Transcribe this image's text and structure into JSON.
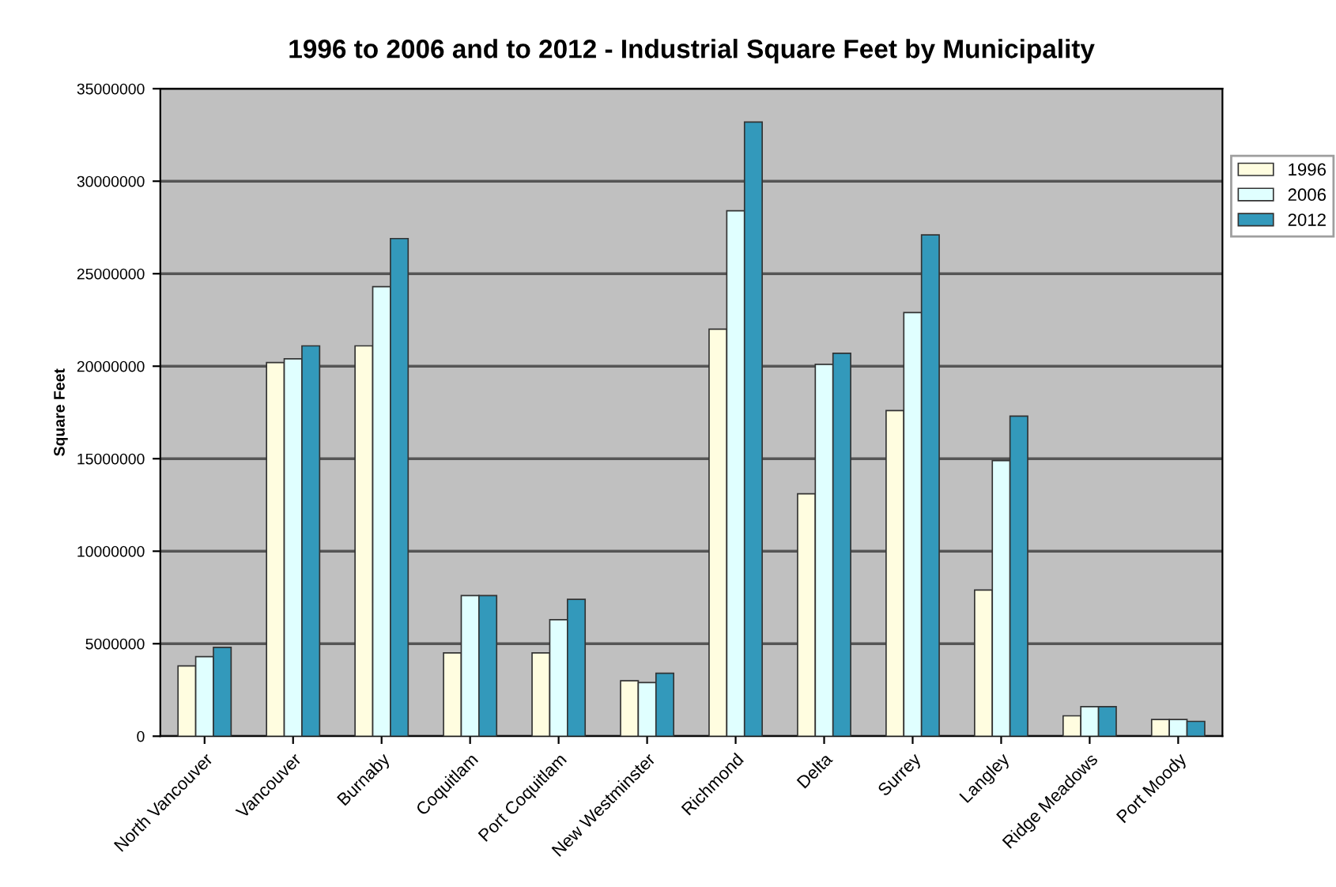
{
  "chart_data": {
    "type": "bar",
    "title": "1996 to 2006 and to 2012 - Industrial Square Feet by Municipality",
    "ylabel": "Square Feet",
    "categories": [
      "North Vancouver",
      "Vancouver",
      "Burnaby",
      "Coquitlam",
      "Port Coquitlam",
      "New Westminster",
      "Richmond",
      "Delta",
      "Surrey",
      "Langley",
      "Ridge Meadows",
      "Port Moody"
    ],
    "series": [
      {
        "name": "1996",
        "color": "#fffde0",
        "values": [
          3800000,
          20200000,
          21100000,
          4500000,
          4500000,
          3000000,
          22000000,
          13100000,
          17600000,
          7900000,
          1100000,
          900000
        ]
      },
      {
        "name": "2006",
        "color": "#e0ffff",
        "values": [
          4300000,
          20400000,
          24300000,
          7600000,
          6300000,
          2900000,
          28400000,
          20100000,
          22900000,
          14900000,
          1600000,
          900000
        ]
      },
      {
        "name": "2012",
        "color": "#3399bb",
        "values": [
          4800000,
          21100000,
          26900000,
          7600000,
          7400000,
          3400000,
          33200000,
          20700000,
          27100000,
          17300000,
          1600000,
          800000
        ]
      }
    ],
    "ylim": [
      0,
      35000000
    ],
    "yticks": [
      0,
      5000000,
      10000000,
      15000000,
      20000000,
      25000000,
      30000000,
      35000000
    ],
    "grid": "y",
    "legend": "top right"
  }
}
